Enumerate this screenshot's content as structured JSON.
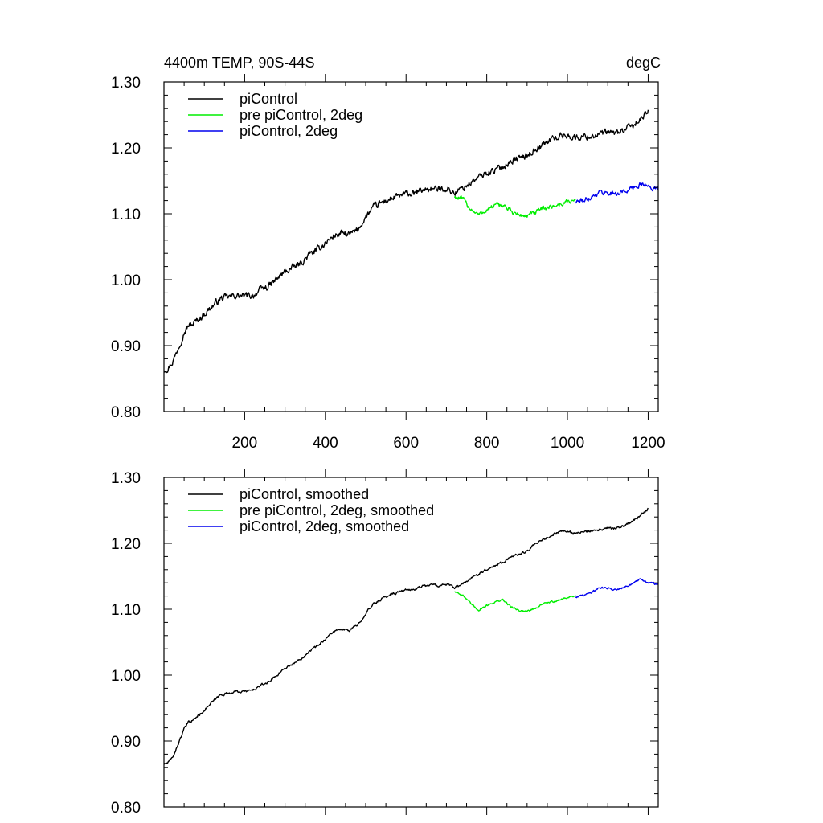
{
  "figure": {
    "title_left": "4400m TEMP, 90S-44S",
    "title_right": "degC"
  },
  "chart_data": [
    {
      "type": "line",
      "panel": "top",
      "xlim": [
        0,
        1225
      ],
      "ylim": [
        0.8,
        1.3
      ],
      "xticks": [
        200,
        400,
        600,
        800,
        1000,
        1200
      ],
      "xtick_labels": [
        "200",
        "400",
        "600",
        "800",
        "1000",
        "1200"
      ],
      "yticks": [
        0.8,
        0.9,
        1.0,
        1.1,
        1.2,
        1.3
      ],
      "ytick_labels": [
        "0.80",
        "0.90",
        "1.00",
        "1.10",
        "1.20",
        "1.30"
      ],
      "legend_placement": "top-left",
      "series": [
        {
          "name": "piControl",
          "color": "#000000",
          "noise": 0.004,
          "x": [
            0,
            10,
            20,
            30,
            40,
            50,
            60,
            70,
            80,
            90,
            100,
            120,
            140,
            160,
            180,
            200,
            220,
            240,
            260,
            280,
            300,
            320,
            340,
            360,
            380,
            400,
            420,
            440,
            460,
            480,
            500,
            520,
            540,
            560,
            580,
            600,
            620,
            640,
            660,
            680,
            700,
            720,
            740,
            760,
            780,
            800,
            820,
            840,
            860,
            880,
            900,
            920,
            940,
            960,
            980,
            1000,
            1020,
            1040,
            1060,
            1080,
            1100,
            1120,
            1140,
            1160,
            1180,
            1200
          ],
          "y": [
            0.864,
            0.866,
            0.874,
            0.888,
            0.905,
            0.92,
            0.93,
            0.932,
            0.937,
            0.942,
            0.948,
            0.96,
            0.971,
            0.974,
            0.976,
            0.975,
            0.976,
            0.985,
            0.99,
            1.001,
            1.012,
            1.018,
            1.025,
            1.038,
            1.045,
            1.056,
            1.066,
            1.07,
            1.068,
            1.075,
            1.095,
            1.11,
            1.117,
            1.122,
            1.126,
            1.13,
            1.13,
            1.136,
            1.138,
            1.137,
            1.139,
            1.131,
            1.139,
            1.147,
            1.155,
            1.162,
            1.166,
            1.172,
            1.18,
            1.185,
            1.188,
            1.198,
            1.205,
            1.213,
            1.218,
            1.219,
            1.215,
            1.217,
            1.218,
            1.221,
            1.223,
            1.222,
            1.227,
            1.233,
            1.242,
            1.255
          ]
        },
        {
          "name": "pre piControl, 2deg",
          "color": "#00ee00",
          "noise": 0.003,
          "x": [
            720,
            740,
            760,
            780,
            800,
            820,
            840,
            860,
            880,
            900,
            920,
            940,
            960,
            980,
            1000,
            1020
          ],
          "y": [
            1.126,
            1.122,
            1.108,
            1.098,
            1.106,
            1.112,
            1.114,
            1.104,
            1.098,
            1.097,
            1.101,
            1.108,
            1.111,
            1.114,
            1.118,
            1.121
          ]
        },
        {
          "name": "piControl, 2deg",
          "color": "#0000ee",
          "noise": 0.003,
          "x": [
            1020,
            1040,
            1060,
            1080,
            1100,
            1120,
            1140,
            1160,
            1180,
            1200,
            1225
          ],
          "y": [
            1.118,
            1.12,
            1.126,
            1.133,
            1.132,
            1.13,
            1.134,
            1.138,
            1.146,
            1.141,
            1.137
          ]
        }
      ]
    },
    {
      "type": "line",
      "panel": "bottom",
      "xlim": [
        0,
        1225
      ],
      "ylim": [
        0.8,
        1.3
      ],
      "xticks": [
        200,
        400,
        600,
        800,
        1000,
        1200
      ],
      "xtick_labels": [],
      "yticks": [
        0.8,
        0.9,
        1.0,
        1.1,
        1.2,
        1.3
      ],
      "ytick_labels": [
        "0.80",
        "0.90",
        "1.00",
        "1.10",
        "1.20",
        "1.30"
      ],
      "legend_placement": "top-left",
      "series": [
        {
          "name": "piControl, smoothed",
          "color": "#000000",
          "noise": 0.0015,
          "x": [
            0,
            10,
            20,
            30,
            40,
            50,
            60,
            70,
            80,
            90,
            100,
            120,
            140,
            160,
            180,
            200,
            220,
            240,
            260,
            280,
            300,
            320,
            340,
            360,
            380,
            400,
            420,
            440,
            460,
            480,
            500,
            520,
            540,
            560,
            580,
            600,
            620,
            640,
            660,
            680,
            700,
            720,
            740,
            760,
            780,
            800,
            820,
            840,
            860,
            880,
            900,
            920,
            940,
            960,
            980,
            1000,
            1020,
            1040,
            1060,
            1080,
            1100,
            1120,
            1140,
            1160,
            1180,
            1200
          ],
          "y": [
            0.865,
            0.867,
            0.874,
            0.887,
            0.903,
            0.918,
            0.928,
            0.931,
            0.936,
            0.941,
            0.947,
            0.959,
            0.97,
            0.973,
            0.975,
            0.975,
            0.977,
            0.984,
            0.99,
            1.0,
            1.011,
            1.017,
            1.025,
            1.037,
            1.044,
            1.055,
            1.066,
            1.069,
            1.068,
            1.076,
            1.094,
            1.108,
            1.116,
            1.122,
            1.126,
            1.129,
            1.13,
            1.135,
            1.137,
            1.136,
            1.138,
            1.132,
            1.138,
            1.146,
            1.154,
            1.161,
            1.166,
            1.172,
            1.179,
            1.184,
            1.188,
            1.198,
            1.205,
            1.212,
            1.218,
            1.218,
            1.215,
            1.217,
            1.218,
            1.22,
            1.223,
            1.222,
            1.227,
            1.233,
            1.241,
            1.253
          ]
        },
        {
          "name": "pre piControl, 2deg, smoothed",
          "color": "#00ee00",
          "noise": 0.0012,
          "x": [
            720,
            740,
            760,
            780,
            800,
            820,
            840,
            860,
            880,
            900,
            920,
            940,
            960,
            980,
            1000,
            1020
          ],
          "y": [
            1.127,
            1.122,
            1.108,
            1.099,
            1.106,
            1.111,
            1.114,
            1.104,
            1.098,
            1.097,
            1.101,
            1.108,
            1.111,
            1.114,
            1.118,
            1.121
          ]
        },
        {
          "name": "piControl, 2deg, smoothed",
          "color": "#0000ee",
          "noise": 0.0012,
          "x": [
            1020,
            1040,
            1060,
            1080,
            1100,
            1120,
            1140,
            1160,
            1180,
            1200,
            1225
          ],
          "y": [
            1.119,
            1.121,
            1.126,
            1.133,
            1.132,
            1.13,
            1.134,
            1.138,
            1.145,
            1.141,
            1.137
          ]
        }
      ]
    }
  ]
}
